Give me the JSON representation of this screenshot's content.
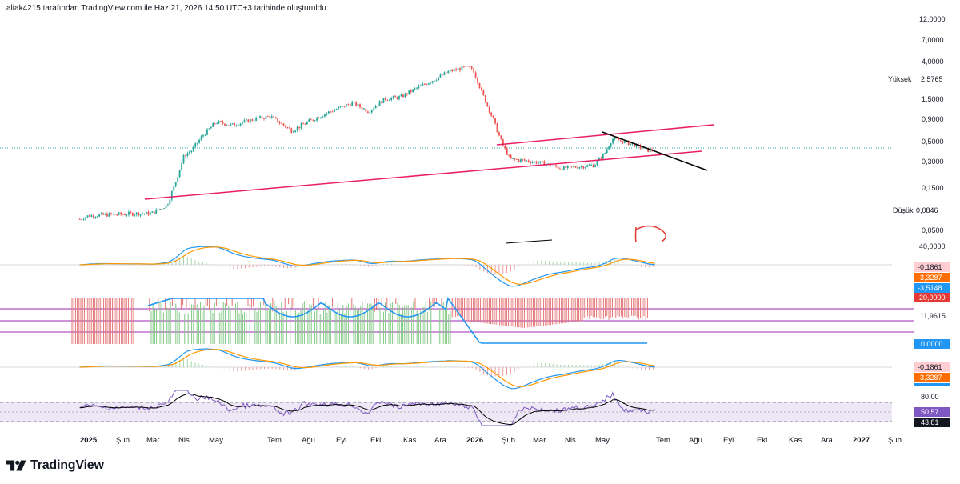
{
  "header": {
    "attribution": "aliak4215 tarafından TradingView.com ile Haz 21, 2026 14:50 UTC+3 tarihinde oluşturuldu"
  },
  "footer": {
    "brand": "TradingView",
    "logo_icon": "tradingview-logo-icon"
  },
  "colors": {
    "up": "#26a69a",
    "down": "#ef5350",
    "trendline_pink": "#e91e63",
    "trendline_black": "#000000",
    "macd_line": "#2196f3",
    "signal_line": "#ff9800",
    "rsi_line": "#7e57c2",
    "rsi_ma": "#000000",
    "band_purple": "#9c27b0",
    "band_fill": "#ede7f6"
  },
  "price_axis": {
    "ticks": [
      "12,0000",
      "7,0000",
      "4,0000",
      "2,5765",
      "1,5000",
      "0,9000",
      "0,5000",
      "0,3000",
      "0,1500",
      "0,0846",
      "0,0500"
    ],
    "high_label": "Yüksek",
    "high_value": "2,5765",
    "low_label": "Düşük",
    "low_value": "0,0846",
    "cut_label": "40,0000"
  },
  "macd1": {
    "values": [
      "-0,1861",
      "-3,3287",
      "-3,5148"
    ]
  },
  "adx": {
    "value_main": "20,0000",
    "level": "11,9615",
    "value_low": "0,0000"
  },
  "macd2": {
    "values": [
      "-0,1861",
      "-3,3287"
    ]
  },
  "rsi": {
    "level_top": "80,00",
    "value_rsi": "50,57",
    "value_ma": "43,81"
  },
  "time_axis": {
    "labels": [
      "2025",
      "Şub",
      "Mar",
      "Nis",
      "May",
      "Tem",
      "Ağu",
      "Eyl",
      "Eki",
      "Kas",
      "Ara",
      "2026",
      "Şub",
      "Mar",
      "Nis",
      "May",
      "Tem",
      "Ağu",
      "Eyl",
      "Eki",
      "Kas",
      "Ara",
      "2027",
      "Şub"
    ],
    "bold": [
      "2025",
      "2026",
      "2027"
    ]
  },
  "chart_data": {
    "type": "candlestick",
    "scale": "log",
    "ylim": [
      0.04,
      12
    ],
    "x_range": [
      "2024-12",
      "2027-02"
    ],
    "series": [
      {
        "name": "",
        "approx_close": [
          [
            "2024-12-28",
            0.088
          ],
          [
            "2025-01-05",
            0.095
          ],
          [
            "2025-01-20",
            0.097
          ],
          [
            "2025-02-05",
            0.098
          ],
          [
            "2025-02-20",
            0.1
          ],
          [
            "2025-03-05",
            0.1
          ],
          [
            "2025-03-20",
            0.12
          ],
          [
            "2025-03-28",
            0.2
          ],
          [
            "2025-04-05",
            0.36
          ],
          [
            "2025-04-12",
            0.4
          ],
          [
            "2025-04-22",
            0.55
          ],
          [
            "2025-05-05",
            0.75
          ],
          [
            "2025-05-20",
            0.7
          ],
          [
            "2025-06-10",
            0.8
          ],
          [
            "2025-06-25",
            0.85
          ],
          [
            "2025-07-15",
            0.62
          ],
          [
            "2025-07-30",
            0.75
          ],
          [
            "2025-08-15",
            0.9
          ],
          [
            "2025-09-10",
            1.15
          ],
          [
            "2025-09-25",
            0.95
          ],
          [
            "2025-10-10",
            1.25
          ],
          [
            "2025-10-25",
            1.3
          ],
          [
            "2025-11-10",
            1.6
          ],
          [
            "2025-11-25",
            1.9
          ],
          [
            "2025-12-10",
            2.3
          ],
          [
            "2025-12-25",
            2.5
          ],
          [
            "2026-01-01",
            2.45
          ],
          [
            "2026-01-10",
            1.4
          ],
          [
            "2026-01-20",
            0.8
          ],
          [
            "2026-01-28",
            0.48
          ],
          [
            "2026-02-05",
            0.33
          ],
          [
            "2026-02-20",
            0.32
          ],
          [
            "2026-03-10",
            0.3
          ],
          [
            "2026-03-25",
            0.27
          ],
          [
            "2026-04-10",
            0.28
          ],
          [
            "2026-04-25",
            0.29
          ],
          [
            "2026-05-05",
            0.38
          ],
          [
            "2026-05-12",
            0.52
          ],
          [
            "2026-05-25",
            0.48
          ],
          [
            "2026-06-05",
            0.44
          ],
          [
            "2026-06-15",
            0.4
          ],
          [
            "2026-06-21",
            0.41
          ]
        ]
      }
    ],
    "annotations": [
      {
        "type": "trendline",
        "color": "#e91e63",
        "from": [
          "2025-03-05",
          0.1
        ],
        "to": [
          "2026-07-15",
          0.38
        ]
      },
      {
        "type": "trendline",
        "color": "#e91e63",
        "from": [
          "2026-02-01",
          0.46
        ],
        "to": [
          "2026-07-15",
          0.78
        ]
      },
      {
        "type": "trendline",
        "color": "#000000",
        "from": [
          "2026-05-15",
          0.65
        ],
        "to": [
          "2026-07-10",
          0.25
        ]
      }
    ],
    "indicators": [
      {
        "name": "MACD",
        "values": {
          "histogram": -0.1861,
          "signal": -3.3287,
          "macd": -3.5148
        }
      },
      {
        "name": "ADX/DI",
        "values": {
          "adx": 20.0,
          "level": 11.9615,
          "di": 0.0
        }
      },
      {
        "name": "MACD",
        "values": {
          "histogram": -0.1861,
          "signal": -3.3287
        }
      },
      {
        "name": "RSI",
        "values": {
          "rsi": 50.57,
          "ma": 43.81
        },
        "levels": [
          80
        ]
      }
    ]
  }
}
